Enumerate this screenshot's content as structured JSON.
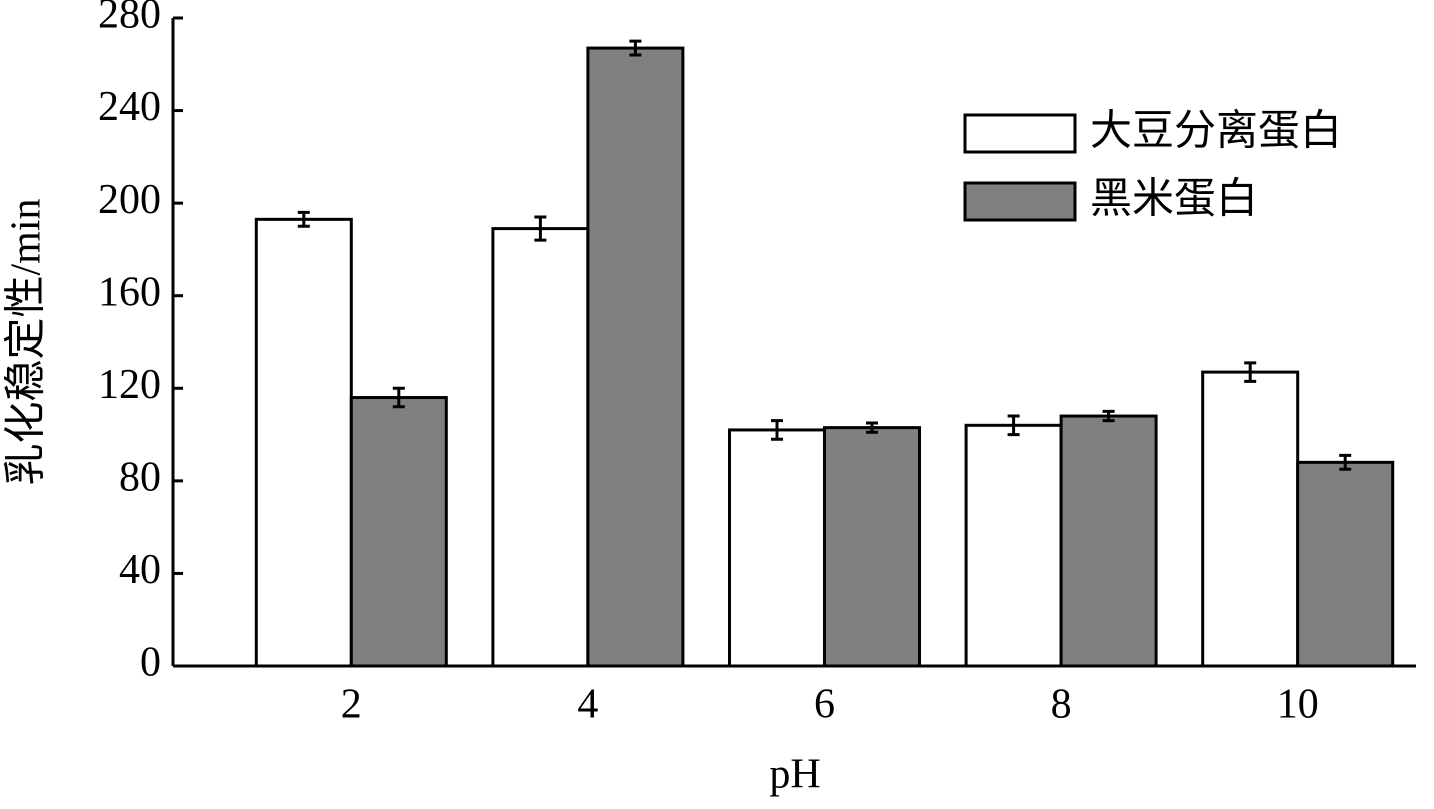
{
  "chart_data": {
    "type": "bar",
    "x_label": "pH",
    "y_label": "乳化稳定性/min",
    "categories": [
      "2",
      "4",
      "6",
      "8",
      "10"
    ],
    "series": [
      {
        "name": "大豆分离蛋白",
        "color": "#ffffff",
        "values": [
          193,
          189,
          102,
          104,
          127
        ],
        "errors": [
          3,
          5,
          4,
          4,
          4
        ]
      },
      {
        "name": "黑米蛋白",
        "color": "#808080",
        "values": [
          116,
          267,
          103,
          108,
          88
        ],
        "errors": [
          4,
          3,
          2,
          2,
          3
        ]
      }
    ],
    "ylim": [
      0,
      280
    ],
    "yticks": [
      0,
      40,
      80,
      120,
      160,
      200,
      240,
      280
    ],
    "legend": "upper right",
    "grid": false
  }
}
